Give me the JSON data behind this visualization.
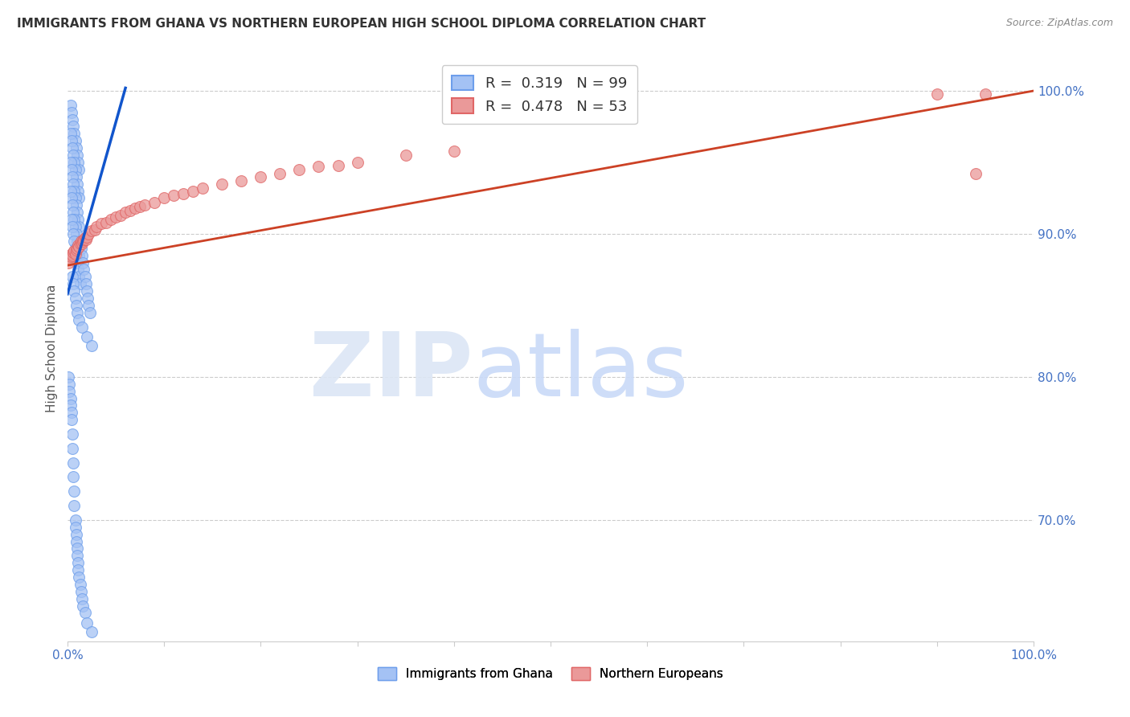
{
  "title": "IMMIGRANTS FROM GHANA VS NORTHERN EUROPEAN HIGH SCHOOL DIPLOMA CORRELATION CHART",
  "source": "Source: ZipAtlas.com",
  "ylabel": "High School Diploma",
  "xlim": [
    0.0,
    1.0
  ],
  "ylim": [
    0.615,
    1.025
  ],
  "ytick_positions": [
    0.7,
    0.8,
    0.9,
    1.0
  ],
  "ytick_labels": [
    "70.0%",
    "80.0%",
    "90.0%",
    "100.0%"
  ],
  "r_ghana": 0.319,
  "n_ghana": 99,
  "r_northern": 0.478,
  "n_northern": 53,
  "ghana_color": "#a4c2f4",
  "ghana_edge_color": "#6d9eeb",
  "northern_color": "#ea9999",
  "northern_edge_color": "#e06666",
  "ghana_line_color": "#1155cc",
  "northern_line_color": "#cc4125",
  "tick_color": "#4472c4",
  "background_color": "#ffffff",
  "ghana_x": [
    0.003,
    0.004,
    0.005,
    0.006,
    0.007,
    0.008,
    0.009,
    0.01,
    0.011,
    0.012,
    0.003,
    0.004,
    0.005,
    0.006,
    0.007,
    0.008,
    0.009,
    0.01,
    0.011,
    0.012,
    0.003,
    0.004,
    0.005,
    0.006,
    0.007,
    0.008,
    0.009,
    0.01,
    0.011,
    0.012,
    0.003,
    0.004,
    0.005,
    0.006,
    0.007,
    0.008,
    0.009,
    0.01,
    0.011,
    0.012,
    0.004,
    0.005,
    0.006,
    0.007,
    0.008,
    0.009,
    0.01,
    0.011,
    0.012,
    0.013,
    0.014,
    0.015,
    0.016,
    0.017,
    0.018,
    0.019,
    0.02,
    0.021,
    0.022,
    0.023,
    0.005,
    0.006,
    0.007,
    0.008,
    0.009,
    0.01,
    0.012,
    0.015,
    0.02,
    0.025,
    0.001,
    0.002,
    0.002,
    0.003,
    0.003,
    0.004,
    0.004,
    0.005,
    0.005,
    0.006,
    0.006,
    0.007,
    0.007,
    0.008,
    0.008,
    0.009,
    0.009,
    0.01,
    0.01,
    0.011,
    0.011,
    0.012,
    0.013,
    0.014,
    0.015,
    0.016,
    0.018,
    0.02,
    0.025
  ],
  "ghana_y": [
    0.99,
    0.985,
    0.98,
    0.975,
    0.97,
    0.965,
    0.96,
    0.955,
    0.95,
    0.945,
    0.97,
    0.965,
    0.96,
    0.955,
    0.95,
    0.945,
    0.94,
    0.935,
    0.93,
    0.925,
    0.95,
    0.945,
    0.94,
    0.935,
    0.93,
    0.925,
    0.92,
    0.915,
    0.91,
    0.905,
    0.93,
    0.925,
    0.92,
    0.915,
    0.91,
    0.905,
    0.9,
    0.895,
    0.89,
    0.885,
    0.91,
    0.905,
    0.9,
    0.895,
    0.89,
    0.885,
    0.88,
    0.875,
    0.87,
    0.865,
    0.89,
    0.885,
    0.88,
    0.875,
    0.87,
    0.865,
    0.86,
    0.855,
    0.85,
    0.845,
    0.87,
    0.865,
    0.86,
    0.855,
    0.85,
    0.845,
    0.84,
    0.835,
    0.828,
    0.822,
    0.8,
    0.795,
    0.79,
    0.785,
    0.78,
    0.775,
    0.77,
    0.76,
    0.75,
    0.74,
    0.73,
    0.72,
    0.71,
    0.7,
    0.695,
    0.69,
    0.685,
    0.68,
    0.675,
    0.67,
    0.665,
    0.66,
    0.655,
    0.65,
    0.645,
    0.64,
    0.635,
    0.628,
    0.622
  ],
  "northern_x": [
    0.001,
    0.002,
    0.003,
    0.004,
    0.005,
    0.006,
    0.007,
    0.008,
    0.009,
    0.01,
    0.011,
    0.012,
    0.013,
    0.014,
    0.015,
    0.016,
    0.017,
    0.018,
    0.019,
    0.02,
    0.022,
    0.025,
    0.028,
    0.03,
    0.035,
    0.04,
    0.045,
    0.05,
    0.055,
    0.06,
    0.065,
    0.07,
    0.075,
    0.08,
    0.09,
    0.1,
    0.11,
    0.12,
    0.13,
    0.14,
    0.16,
    0.18,
    0.2,
    0.22,
    0.24,
    0.26,
    0.28,
    0.3,
    0.35,
    0.4,
    0.9,
    0.94,
    0.95
  ],
  "northern_y": [
    0.88,
    0.882,
    0.884,
    0.886,
    0.885,
    0.887,
    0.888,
    0.886,
    0.889,
    0.89,
    0.892,
    0.891,
    0.893,
    0.895,
    0.893,
    0.895,
    0.896,
    0.897,
    0.896,
    0.898,
    0.9,
    0.902,
    0.903,
    0.905,
    0.907,
    0.908,
    0.91,
    0.912,
    0.913,
    0.915,
    0.916,
    0.918,
    0.919,
    0.92,
    0.922,
    0.925,
    0.927,
    0.928,
    0.93,
    0.932,
    0.935,
    0.937,
    0.94,
    0.942,
    0.945,
    0.947,
    0.948,
    0.95,
    0.955,
    0.958,
    0.998,
    0.942,
    0.998
  ],
  "ghana_trendline_x": [
    0.0,
    0.06
  ],
  "ghana_trendline_y": [
    0.858,
    1.002
  ],
  "northern_trendline_x": [
    0.0,
    1.0
  ],
  "northern_trendline_y": [
    0.878,
    1.0
  ]
}
